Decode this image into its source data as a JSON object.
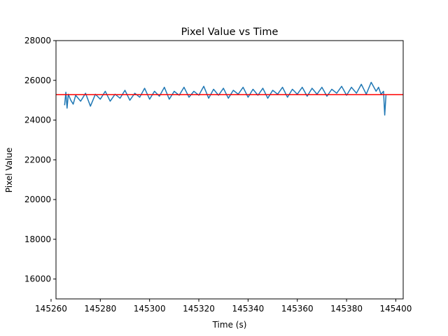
{
  "chart_data": {
    "type": "line",
    "title": "Pixel Value vs Time",
    "xlabel": "Time (s)",
    "ylabel": "Pixel Value",
    "xlim": [
      145262,
      145403
    ],
    "ylim": [
      15000,
      28000
    ],
    "xticks": [
      145260,
      145280,
      145300,
      145320,
      145340,
      145360,
      145380,
      145400
    ],
    "yticks": [
      16000,
      18000,
      20000,
      22000,
      24000,
      26000,
      28000
    ],
    "grid": false,
    "series": [
      {
        "color": "#1f77b4",
        "x": [
          145265.5,
          145266,
          145266.5,
          145267,
          145268,
          145269,
          145270,
          145272,
          145274,
          145276,
          145278,
          145280,
          145282,
          145284,
          145286,
          145288,
          145290,
          145292,
          145294,
          145296,
          145298,
          145300,
          145302,
          145304,
          145306,
          145308,
          145310,
          145312,
          145314,
          145316,
          145318,
          145320,
          145322,
          145324,
          145326,
          145328,
          145330,
          145332,
          145334,
          145336,
          145338,
          145340,
          145342,
          145344,
          145346,
          145348,
          145350,
          145352,
          145354,
          145356,
          145358,
          145360,
          145362,
          145364,
          145366,
          145368,
          145370,
          145372,
          145374,
          145376,
          145378,
          145380,
          145382,
          145384,
          145386,
          145388,
          145390,
          145392,
          145393,
          145394,
          145395,
          145395.5,
          145396
        ],
        "values": [
          24750,
          25400,
          24600,
          25300,
          25000,
          24800,
          25250,
          24950,
          25350,
          24700,
          25300,
          25050,
          25450,
          24950,
          25300,
          25100,
          25500,
          25000,
          25350,
          25150,
          25600,
          25050,
          25450,
          25200,
          25650,
          25050,
          25450,
          25250,
          25650,
          25150,
          25450,
          25250,
          25700,
          25100,
          25550,
          25250,
          25600,
          25100,
          25500,
          25300,
          25650,
          25150,
          25550,
          25250,
          25600,
          25100,
          25500,
          25300,
          25650,
          25150,
          25550,
          25300,
          25650,
          25200,
          25600,
          25300,
          25650,
          25200,
          25550,
          25350,
          25700,
          25250,
          25650,
          25350,
          25800,
          25300,
          25900,
          25450,
          25650,
          25300,
          25450,
          24250,
          25250
        ]
      }
    ],
    "hline": {
      "y": 25280,
      "color": "#ff0000"
    }
  }
}
